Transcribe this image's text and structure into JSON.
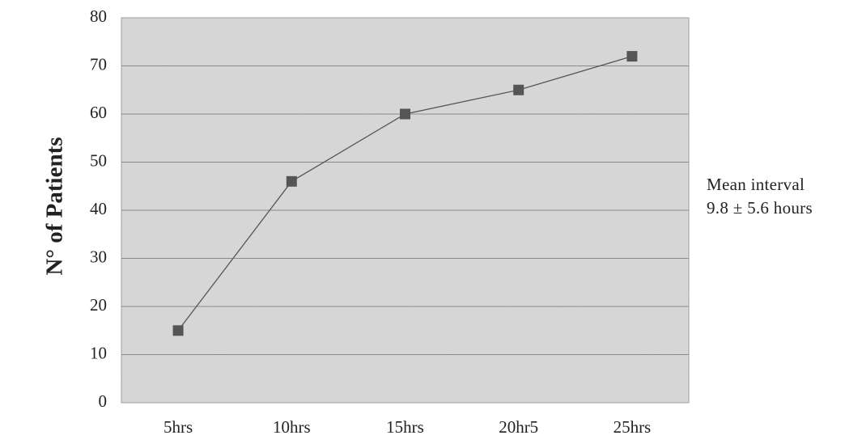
{
  "chart_data": {
    "type": "line",
    "title": "",
    "xlabel": "",
    "ylabel": "N° of Patients",
    "categories": [
      "5hrs",
      "10hrs",
      "15hrs",
      "20hr5",
      "25hrs"
    ],
    "series": [
      {
        "values": [
          15,
          46,
          60,
          65,
          72
        ]
      }
    ],
    "ylim": [
      0,
      80
    ],
    "yticks": [
      0,
      10,
      20,
      30,
      40,
      50,
      60,
      70,
      80
    ],
    "grid": true,
    "marker": "square",
    "colors": {
      "plot_background": "#d9d9d9",
      "line": "#555555",
      "marker": "#555555",
      "grid": "#8a8a8a"
    }
  },
  "annotation": {
    "line1": "Mean interval",
    "line2": "9.8 ± 5.6 hours"
  }
}
